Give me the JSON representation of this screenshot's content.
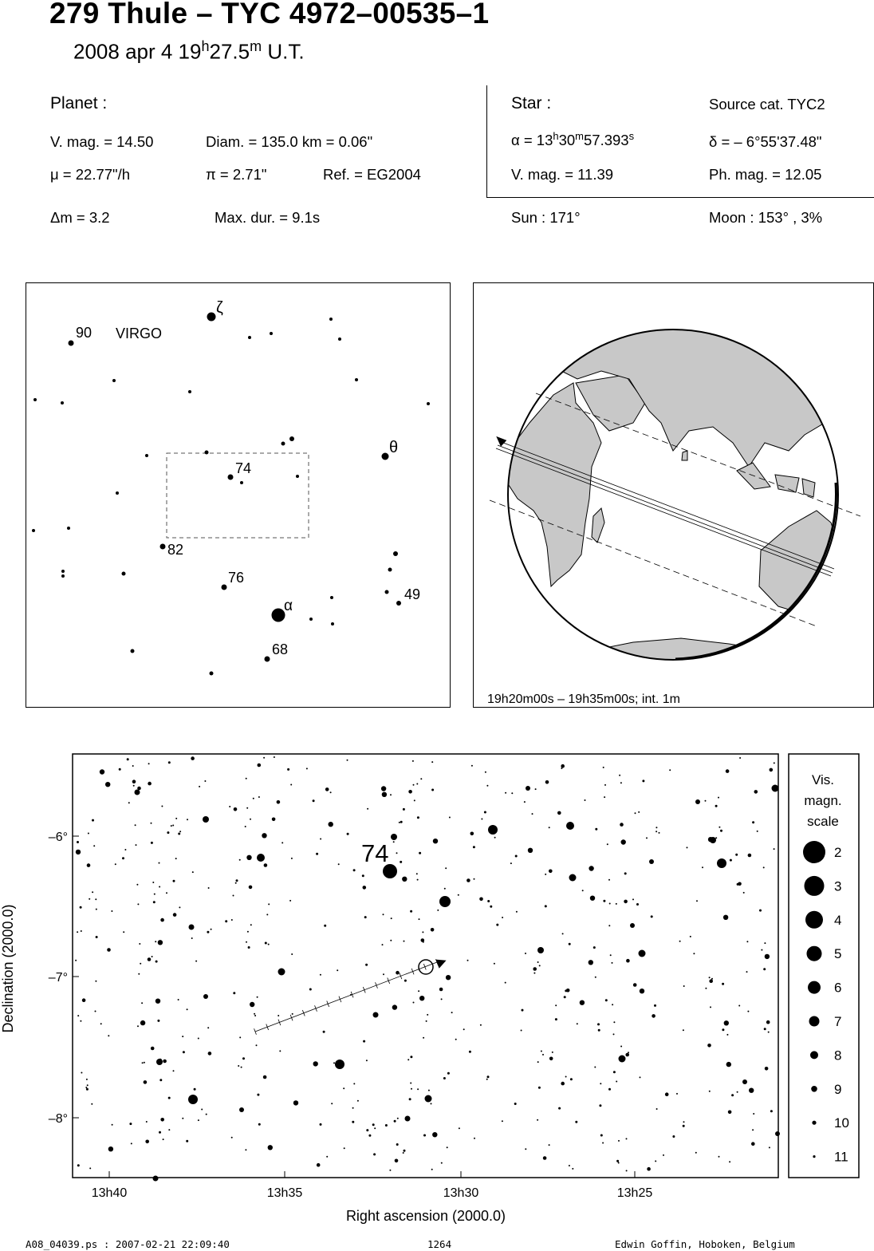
{
  "header": {
    "title": "279 Thule  –  TYC 4972–00535–1",
    "date": "2008 apr  4  19",
    "hour_unit": "h",
    "minutes": "27.5",
    "minute_unit": "m",
    "time_suffix": " U.T."
  },
  "planet": {
    "label": "Planet :",
    "vmag": "V. mag. = 14.50",
    "diam": "Diam. = 135.0 km = 0.06\"",
    "mu": "μ =  22.77\"/h",
    "pi": "π =  2.71\"",
    "ref": "Ref. = EG2004"
  },
  "star": {
    "label": "Star :",
    "source": "Source cat.  TYC2",
    "alpha_prefix": "α = 13",
    "alpha_h": "h",
    "alpha_m_val": "30",
    "alpha_m": "m",
    "alpha_s_val": "57.393",
    "alpha_s": "s",
    "delta": "δ = – 6°55'37.48\"",
    "vmag": "V. mag. = 11.39",
    "phmag": "Ph. mag. = 12.05"
  },
  "event": {
    "dm": "Δm = 3.2",
    "maxdur": "Max. dur. = 9.1s",
    "sun": "Sun : 171°",
    "moon": "Moon : 153° ,  3%"
  },
  "finder": {
    "constellation": "VIRGO",
    "labels": {
      "zeta": "ζ",
      "n90": "90",
      "theta": "θ",
      "n74": "74",
      "n82": "82",
      "n76": "76",
      "n49": "49",
      "alpha": "α",
      "n68": "68"
    }
  },
  "globe": {
    "caption": "19h20m00s – 19h35m00s; int.  1m"
  },
  "chart": {
    "star_label": "74",
    "ylabel": "Declination (2000.0)",
    "xlabel": "Right ascension (2000.0)",
    "xticks": [
      "13h40",
      "13h35",
      "13h30",
      "13h25"
    ],
    "yticks": [
      "–6°",
      "–7°",
      "–8°"
    ]
  },
  "scale": {
    "title1": "Vis.",
    "title2": "magn.",
    "title3": "scale",
    "mags": [
      "2",
      "3",
      "4",
      "5",
      "6",
      "7",
      "8",
      "9",
      "10",
      "11"
    ]
  },
  "footer": {
    "file": "A08_04039.ps : 2007-02-21 22:09:40",
    "number": "1264",
    "author": "Edwin Goffin, Hoboken, Belgium"
  }
}
